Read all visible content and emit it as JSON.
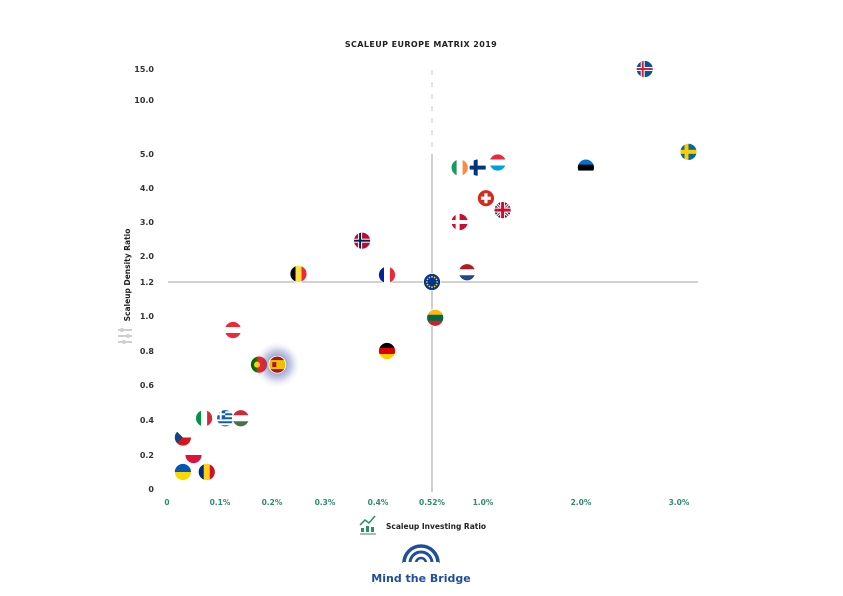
{
  "chart_data": {
    "type": "scatter",
    "title": "SCALEUP EUROPE MATRIX 2019",
    "xlabel": "Scaleup Investing Ratio",
    "ylabel": "Scaleup Density Ratio",
    "x_ticks": [
      "0",
      "0.1%",
      "0.2%",
      "0.3%",
      "0.4%",
      "0.52%",
      "1.0%",
      "2.0%",
      "3.0%"
    ],
    "y_ticks": [
      "0",
      "0.2",
      "0.4",
      "0.6",
      "0.8",
      "1.0",
      "1.2",
      "2.0",
      "3.0",
      "4.0",
      "5.0",
      "10.0",
      "15.0"
    ],
    "reference_lines": {
      "x": "0.52%",
      "y": "1.2"
    },
    "points": [
      {
        "flag": "iceland",
        "x": 2.65,
        "y": 15.0
      },
      {
        "flag": "sweden",
        "x": 3.1,
        "y": 5.2
      },
      {
        "flag": "estonia",
        "x": 2.05,
        "y": 4.6
      },
      {
        "flag": "luxembourg",
        "x": 1.15,
        "y": 4.75
      },
      {
        "flag": "finland",
        "x": 0.95,
        "y": 4.6
      },
      {
        "flag": "ireland",
        "x": 0.78,
        "y": 4.6
      },
      {
        "flag": "switzerland",
        "x": 1.03,
        "y": 3.7
      },
      {
        "flag": "united-kingdom",
        "x": 1.2,
        "y": 3.35
      },
      {
        "flag": "denmark",
        "x": 0.78,
        "y": 3.0
      },
      {
        "flag": "norway",
        "x": 0.37,
        "y": 2.45
      },
      {
        "flag": "netherlands",
        "x": 0.85,
        "y": 1.5
      },
      {
        "flag": "belgium",
        "x": 0.25,
        "y": 1.45
      },
      {
        "flag": "france",
        "x": 0.42,
        "y": 1.42
      },
      {
        "flag": "european-union",
        "x": 0.52,
        "y": 1.2
      },
      {
        "flag": "lithuania",
        "x": 0.55,
        "y": 0.99
      },
      {
        "flag": "germany",
        "x": 0.42,
        "y": 0.8
      },
      {
        "flag": "austria",
        "x": 0.125,
        "y": 0.92
      },
      {
        "flag": "portugal",
        "x": 0.175,
        "y": 0.72
      },
      {
        "flag": "spain",
        "x": 0.21,
        "y": 0.72
      },
      {
        "flag": "italy",
        "x": 0.07,
        "y": 0.41
      },
      {
        "flag": "greece",
        "x": 0.11,
        "y": 0.41
      },
      {
        "flag": "hungary",
        "x": 0.14,
        "y": 0.41
      },
      {
        "flag": "czech-republic",
        "x": 0.03,
        "y": 0.3
      },
      {
        "flag": "poland",
        "x": 0.05,
        "y": 0.2
      },
      {
        "flag": "ukraine",
        "x": 0.03,
        "y": 0.1
      },
      {
        "flag": "romania",
        "x": 0.075,
        "y": 0.1
      }
    ],
    "highlight": "spain",
    "grid": false
  },
  "brand": {
    "name": "Mind the Bridge"
  },
  "colors": {
    "x_tick": "#2e8b6a",
    "brand_blue": "#1f4e9c",
    "reference_line": "#888888"
  }
}
